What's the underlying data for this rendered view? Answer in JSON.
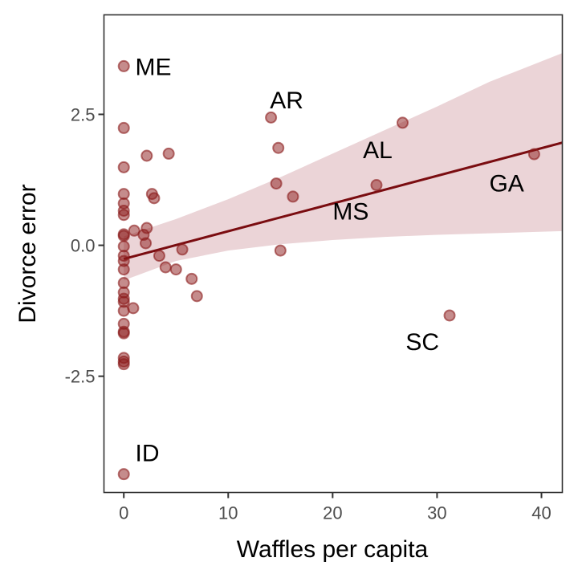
{
  "chart_data": {
    "type": "scatter",
    "title": "",
    "xlabel": "Waffles per capita",
    "ylabel": "Divorce error",
    "xlim": [
      -1.9,
      42.0
    ],
    "ylim": [
      -4.72,
      4.4
    ],
    "xticks": [
      0,
      10,
      20,
      30,
      40
    ],
    "xtick_labels": [
      "0",
      "10",
      "20",
      "30",
      "40"
    ],
    "yticks": [
      -2.5,
      0.0,
      2.5
    ],
    "ytick_labels": [
      "-2.5",
      "0.0",
      "2.5"
    ],
    "grid": false,
    "legend": "none",
    "colors": {
      "point": "#8b1a1a",
      "line": "#7a0c10",
      "band": "#e8cdd0",
      "axis": "#333333"
    },
    "points": [
      {
        "x": 0,
        "y": 3.42,
        "label": "ME"
      },
      {
        "x": 0,
        "y": 2.24
      },
      {
        "x": 0,
        "y": 1.49
      },
      {
        "x": 0,
        "y": 0.98
      },
      {
        "x": 0,
        "y": 0.8
      },
      {
        "x": 0,
        "y": 0.66
      },
      {
        "x": 0,
        "y": 0.58
      },
      {
        "x": 0,
        "y": 0.21
      },
      {
        "x": 0,
        "y": 0.18
      },
      {
        "x": 0,
        "y": -0.02
      },
      {
        "x": 0,
        "y": -0.2
      },
      {
        "x": 0,
        "y": -0.3
      },
      {
        "x": 0,
        "y": -0.46
      },
      {
        "x": 0,
        "y": -0.72
      },
      {
        "x": 0,
        "y": -0.9
      },
      {
        "x": 0,
        "y": -1.02
      },
      {
        "x": 0,
        "y": -1.08
      },
      {
        "x": 0,
        "y": -1.25
      },
      {
        "x": 0,
        "y": -1.5
      },
      {
        "x": 0,
        "y": -1.65
      },
      {
        "x": 0,
        "y": -1.68
      },
      {
        "x": 0,
        "y": -2.15
      },
      {
        "x": 0,
        "y": -2.22
      },
      {
        "x": 0,
        "y": -2.27
      },
      {
        "x": 0,
        "y": -4.37,
        "label": "ID"
      },
      {
        "x": 0.9,
        "y": -1.2
      },
      {
        "x": 1.0,
        "y": 0.28
      },
      {
        "x": 1.9,
        "y": 0.2
      },
      {
        "x": 2.1,
        "y": 0.04
      },
      {
        "x": 2.2,
        "y": 0.33
      },
      {
        "x": 2.2,
        "y": 1.71
      },
      {
        "x": 2.7,
        "y": 0.98
      },
      {
        "x": 2.9,
        "y": 0.9
      },
      {
        "x": 3.4,
        "y": -0.2
      },
      {
        "x": 4.0,
        "y": -0.42
      },
      {
        "x": 4.3,
        "y": 1.75
      },
      {
        "x": 5.0,
        "y": -0.46
      },
      {
        "x": 5.6,
        "y": -0.08
      },
      {
        "x": 6.5,
        "y": -0.64
      },
      {
        "x": 7.0,
        "y": -0.97
      },
      {
        "x": 14.1,
        "y": 2.44,
        "label": "AR"
      },
      {
        "x": 14.6,
        "y": 1.18
      },
      {
        "x": 14.8,
        "y": 1.86
      },
      {
        "x": 15.0,
        "y": -0.1
      },
      {
        "x": 16.2,
        "y": 0.93
      },
      {
        "x": 24.2,
        "y": 1.15,
        "label": "MS"
      },
      {
        "x": 26.7,
        "y": 2.34,
        "label": "AL"
      },
      {
        "x": 31.2,
        "y": -1.34,
        "label": "SC"
      },
      {
        "x": 39.3,
        "y": 1.74,
        "label": "GA"
      }
    ],
    "labels": [
      {
        "text": "ME",
        "x": 1.1,
        "y": 3.42
      },
      {
        "text": "AR",
        "x": 14.0,
        "y": 2.78
      },
      {
        "text": "AL",
        "x": 22.9,
        "y": 1.83
      },
      {
        "text": "MS",
        "x": 20.0,
        "y": 0.66
      },
      {
        "text": "GA",
        "x": 35.0,
        "y": 1.2
      },
      {
        "text": "SC",
        "x": 27.0,
        "y": -1.83
      },
      {
        "text": "ID",
        "x": 1.1,
        "y": -3.95
      }
    ],
    "regression": {
      "x_range": [
        0,
        42.0
      ],
      "fit": [
        -0.26,
        1.96
      ],
      "band_lower": [
        -0.67,
        0.27
      ],
      "band_upper": [
        0.17,
        3.67
      ],
      "band_samples": [
        {
          "x": 0,
          "lo": -0.67,
          "hi": 0.17
        },
        {
          "x": 5,
          "lo": -0.3,
          "hi": 0.5
        },
        {
          "x": 10,
          "lo": -0.1,
          "hi": 0.88
        },
        {
          "x": 15,
          "lo": 0.02,
          "hi": 1.3
        },
        {
          "x": 20,
          "lo": 0.1,
          "hi": 1.75
        },
        {
          "x": 25,
          "lo": 0.16,
          "hi": 2.2
        },
        {
          "x": 30,
          "lo": 0.2,
          "hi": 2.65
        },
        {
          "x": 35,
          "lo": 0.23,
          "hi": 3.12
        },
        {
          "x": 42,
          "lo": 0.27,
          "hi": 3.67
        }
      ]
    }
  }
}
